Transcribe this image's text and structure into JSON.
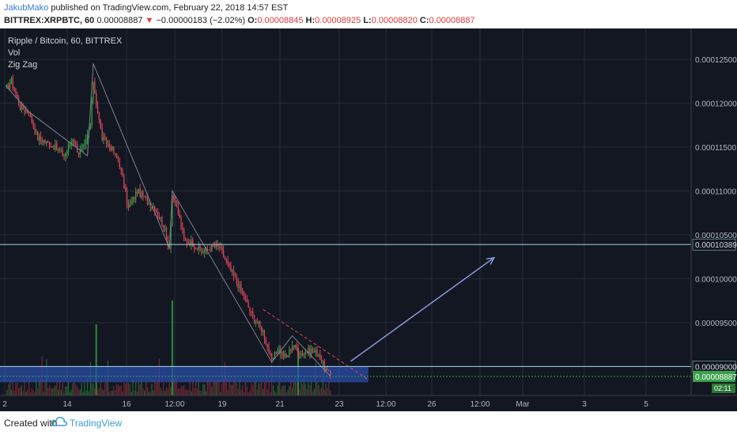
{
  "header": {
    "author": "JakubMako",
    "published_text": " published on TradingView.com, February 22, 2018 14:57 EST",
    "symbol_line": "BITTREX:XRPBTC, 60",
    "last": "0.00008887",
    "change": "−0.00000183 (−2.02%)",
    "o_label": "O:",
    "o_value": "0.00008845",
    "h_label": "H:",
    "h_value": "0.00008925",
    "l_label": "L:",
    "l_value": "0.00008820",
    "c_label": "C:",
    "c_value": "0.00008887"
  },
  "legend": {
    "title": "Ripple / Bitcoin, 60, BITTREX",
    "vol": "Vol",
    "zigzag": "Zig Zag"
  },
  "footer": {
    "created_with": "Created with",
    "brand": "TradingView"
  },
  "colors": {
    "background": "#131722",
    "grid": "#262b38",
    "up": "#3ca14a",
    "down": "#e0465a",
    "zone": "#2a4ea8",
    "arrow": "#8a96d8",
    "resistance": "#a7d7e6",
    "trendline": "#e0465a"
  },
  "chart_data": {
    "type": "candlestick",
    "title": "Ripple / Bitcoin, 60, BITTREX",
    "x_ticks": [
      "2",
      "14",
      "16",
      "12:00",
      "19",
      "21",
      "23",
      "12:00",
      "26",
      "12:00",
      "Mar",
      "3",
      "5"
    ],
    "y_ticks": [
      "0.00012500",
      "0.00012000",
      "0.00011500",
      "0.00011000",
      "0.00010500",
      "0.00010000",
      "0.00009500",
      "0.00009000"
    ],
    "ylim": [
      8.67e-05,
      0.0001285
    ],
    "price_labels": {
      "resistance": "0.00010389",
      "support": "0.00009000",
      "last": "0.00008887",
      "countdown": "02:11"
    },
    "price_path": [
      {
        "x": 0,
        "p": 0.0001215
      },
      {
        "x": 2,
        "p": 0.0001225
      },
      {
        "x": 5,
        "p": 0.0001195
      },
      {
        "x": 8,
        "p": 0.000119
      },
      {
        "x": 11,
        "p": 0.000116
      },
      {
        "x": 14,
        "p": 0.0001155
      },
      {
        "x": 17,
        "p": 0.000115
      },
      {
        "x": 20,
        "p": 0.000114
      },
      {
        "x": 23,
        "p": 0.000116
      },
      {
        "x": 25,
        "p": 0.0001143
      },
      {
        "x": 27,
        "p": 0.000115
      },
      {
        "x": 29,
        "p": 0.0001175
      },
      {
        "x": 30,
        "p": 0.0001225
      },
      {
        "x": 31,
        "p": 0.00012
      },
      {
        "x": 33,
        "p": 0.000116
      },
      {
        "x": 36,
        "p": 0.000115
      },
      {
        "x": 39,
        "p": 0.000113
      },
      {
        "x": 42,
        "p": 0.000108
      },
      {
        "x": 45,
        "p": 0.00011
      },
      {
        "x": 48,
        "p": 0.000109
      },
      {
        "x": 51,
        "p": 0.000108
      },
      {
        "x": 54,
        "p": 0.000106
      },
      {
        "x": 56,
        "p": 0.0001035
      },
      {
        "x": 57,
        "p": 0.0001095
      },
      {
        "x": 59,
        "p": 0.0001075
      },
      {
        "x": 61,
        "p": 0.0001045
      },
      {
        "x": 64,
        "p": 0.000104
      },
      {
        "x": 67,
        "p": 0.000103
      },
      {
        "x": 70,
        "p": 0.0001035
      },
      {
        "x": 73,
        "p": 0.0001037
      },
      {
        "x": 76,
        "p": 0.0001015
      },
      {
        "x": 80,
        "p": 9.9e-05
      },
      {
        "x": 84,
        "p": 9.6e-05
      },
      {
        "x": 88,
        "p": 9.4e-05
      },
      {
        "x": 91,
        "p": 9.05e-05
      },
      {
        "x": 93,
        "p": 9.2e-05
      },
      {
        "x": 96,
        "p": 9.1e-05
      },
      {
        "x": 98,
        "p": 9.25e-05
      },
      {
        "x": 101,
        "p": 9.15e-05
      },
      {
        "x": 104,
        "p": 9.18e-05
      },
      {
        "x": 107,
        "p": 9.15e-05
      },
      {
        "x": 109,
        "p": 8.98e-05
      },
      {
        "x": 111,
        "p": 8.89e-05
      }
    ]
  }
}
